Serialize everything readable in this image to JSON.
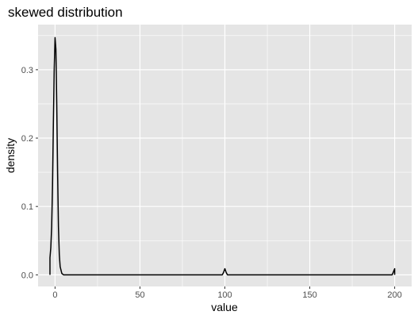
{
  "chart_data": {
    "type": "line",
    "title": "skewed distribution",
    "xlabel": "value",
    "ylabel": "density",
    "xlim": [
      -10,
      210
    ],
    "ylim": [
      -0.017,
      0.366
    ],
    "x_ticks": [
      0,
      50,
      100,
      150,
      200
    ],
    "x_tick_labels": [
      "0",
      "50",
      "100",
      "150",
      "200"
    ],
    "y_ticks": [
      0.0,
      0.1,
      0.2,
      0.3
    ],
    "y_tick_labels": [
      "0.0",
      "0.1",
      "0.2",
      "0.3"
    ],
    "grid": true,
    "legend": "none",
    "series": [
      {
        "x": [
          -3,
          -3,
          -2.5,
          -2,
          -1.5,
          -1,
          -0.5,
          0,
          0.5,
          1,
          1.5,
          2,
          2.5,
          3,
          4,
          5,
          10,
          20,
          40,
          60,
          80,
          98.5,
          99.3,
          100,
          100.7,
          101.5,
          120,
          150,
          180,
          198.5,
          199.2,
          200,
          200,
          200
        ],
        "y": [
          0.0,
          0.025,
          0.04,
          0.07,
          0.13,
          0.22,
          0.3,
          0.347,
          0.33,
          0.25,
          0.15,
          0.07,
          0.03,
          0.012,
          0.002,
          0.0,
          0.0,
          0.0,
          0.0,
          0.0,
          0.0,
          0.0,
          0.004,
          0.009,
          0.004,
          0.0,
          0.0,
          0.0,
          0.0,
          0.0,
          0.004,
          0.009,
          0.004,
          0.0
        ]
      }
    ]
  },
  "colors": {
    "panel_background": "#e5e5e5",
    "grid_major": "#ffffff",
    "line": "#000000"
  }
}
